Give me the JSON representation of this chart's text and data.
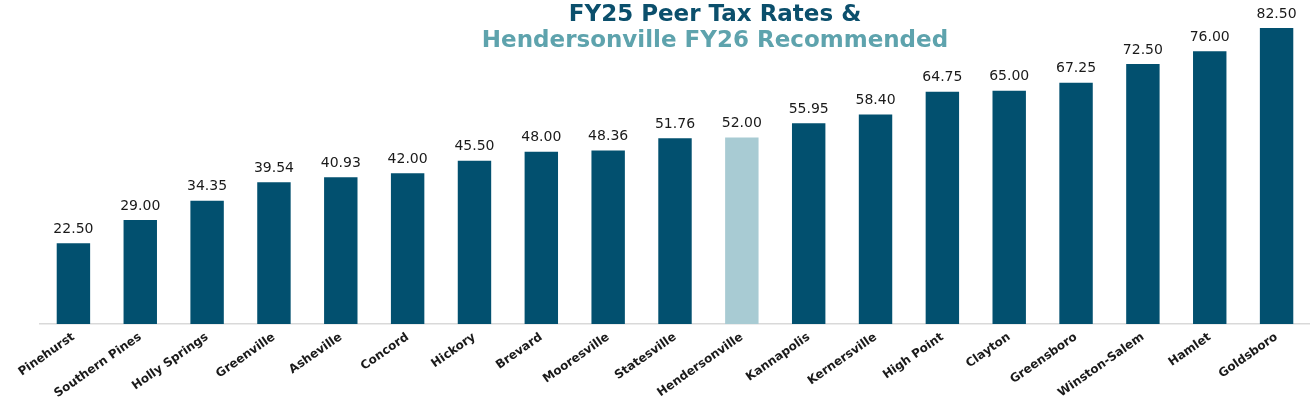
{
  "chart_data": {
    "type": "bar",
    "title": "FY25 Peer Tax Rates &",
    "subtitle": "Hendersonville FY26 Recommended",
    "categories": [
      "Pinehurst",
      "Southern Pines",
      "Holly Springs",
      "Greenville",
      "Asheville",
      "Concord",
      "Hickory",
      "Brevard",
      "Mooresville",
      "Statesville",
      "Hendersonville",
      "Kannapolis",
      "Kernersville",
      "High Point",
      "Clayton",
      "Greensboro",
      "Winston-Salem",
      "Hamlet",
      "Goldsboro"
    ],
    "values": [
      22.5,
      29.0,
      34.35,
      39.54,
      40.93,
      42.0,
      45.5,
      48.0,
      48.36,
      51.76,
      52.0,
      55.95,
      58.4,
      64.75,
      65.0,
      67.25,
      72.5,
      76.0,
      82.5
    ],
    "colors": [
      "#02506f",
      "#02506f",
      "#02506f",
      "#02506f",
      "#02506f",
      "#02506f",
      "#02506f",
      "#02506f",
      "#02506f",
      "#02506f",
      "#a8cbd3",
      "#02506f",
      "#02506f",
      "#02506f",
      "#02506f",
      "#02506f",
      "#02506f",
      "#02506f",
      "#02506f"
    ],
    "value_labels": [
      "22.50",
      "29.00",
      "34.35",
      "39.54",
      "40.93",
      "42.00",
      "45.50",
      "48.00",
      "48.36",
      "51.76",
      "52.00",
      "55.95",
      "58.40",
      "64.75",
      "65.00",
      "67.25",
      "72.50",
      "76.00",
      "82.50"
    ],
    "tick_labels": "x"
  }
}
